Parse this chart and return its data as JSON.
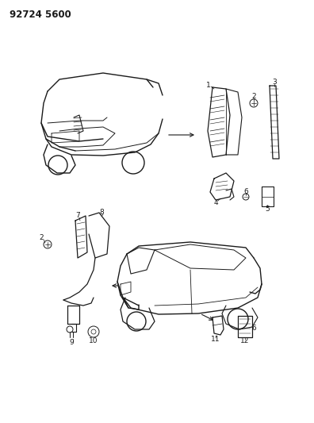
{
  "title": "92724 5600",
  "bg_color": "#ffffff",
  "line_color": "#1a1a1a",
  "title_fontsize": 9,
  "fig_width": 3.96,
  "fig_height": 5.33,
  "dpi": 100
}
